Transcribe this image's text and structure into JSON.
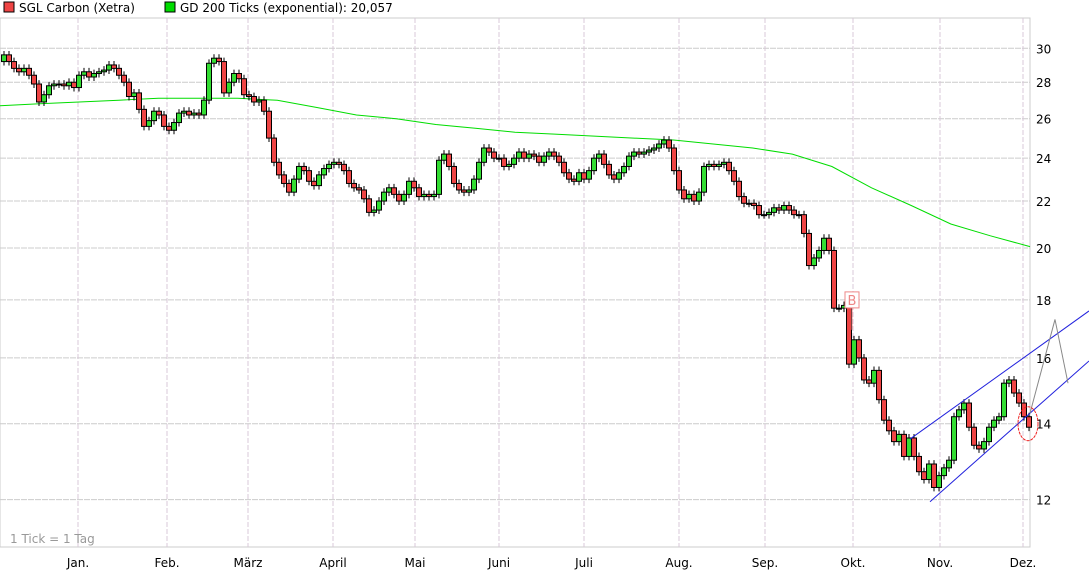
{
  "chart_data": {
    "type": "candlestick",
    "title": "",
    "legend": [
      {
        "name": "SGL Carbon (Xetra)",
        "color": "#ee4444"
      },
      {
        "name": "GD 200 Ticks (exponential): 20,057",
        "color": "#00dd00"
      }
    ],
    "legend_placement": "top-left",
    "note": "1 Tick = 1 Tag",
    "y_scale": "log",
    "y_axis_side": "right",
    "ylim": [
      10.9,
      31.9
    ],
    "y_ticks": [
      "12",
      "14",
      "16",
      "18",
      "20",
      "22",
      "24",
      "26",
      "28",
      "30"
    ],
    "x_ticks": [
      "Jan.",
      "Feb.",
      "März",
      "April",
      "Mai",
      "Juni",
      "Juli",
      "Aug.",
      "Sep.",
      "Okt.",
      "Nov.",
      "Dez."
    ],
    "grid": true,
    "colors": {
      "up": "#33dd33",
      "down": "#ee4444",
      "ma": "#00dd00",
      "channel": "#2222dd",
      "projection": "#888888",
      "marker": "#ee8888"
    },
    "first_open": 29.2,
    "closes": [
      29.6,
      29.2,
      28.8,
      28.6,
      28.8,
      28.4,
      27.9,
      26.9,
      27.3,
      27.8,
      27.9,
      27.9,
      27.8,
      28.0,
      27.7,
      28.4,
      28.6,
      28.3,
      28.5,
      28.6,
      28.7,
      29.0,
      28.8,
      28.4,
      28.0,
      27.2,
      27.4,
      26.5,
      25.6,
      25.9,
      26.4,
      26.2,
      25.6,
      25.4,
      25.8,
      26.3,
      26.4,
      26.2,
      26.3,
      26.2,
      27.0,
      29.1,
      29.4,
      29.2,
      27.4,
      28.0,
      28.5,
      28.2,
      27.3,
      27.2,
      26.9,
      27.0,
      26.4,
      25.0,
      23.8,
      23.2,
      22.8,
      22.4,
      23.0,
      23.6,
      23.4,
      22.9,
      22.7,
      23.2,
      23.5,
      23.7,
      23.8,
      23.7,
      23.4,
      22.8,
      22.6,
      22.5,
      22.1,
      21.5,
      21.6,
      22.0,
      22.4,
      22.6,
      22.3,
      22.0,
      22.3,
      22.9,
      22.6,
      22.2,
      22.3,
      22.2,
      22.3,
      23.9,
      24.2,
      23.6,
      22.8,
      22.5,
      22.4,
      22.5,
      23.0,
      23.8,
      24.5,
      24.3,
      24.0,
      24.0,
      23.6,
      23.7,
      24.0,
      24.3,
      24.0,
      24.2,
      24.1,
      23.8,
      24.1,
      24.3,
      24.1,
      23.8,
      23.3,
      23.0,
      22.9,
      23.3,
      23.0,
      23.4,
      24.0,
      24.2,
      23.7,
      23.2,
      23.0,
      23.3,
      23.6,
      24.1,
      24.3,
      24.2,
      24.3,
      24.4,
      24.5,
      24.7,
      24.9,
      24.5,
      23.4,
      22.5,
      22.1,
      22.3,
      22.0,
      22.4,
      23.6,
      23.7,
      23.6,
      23.7,
      23.8,
      23.4,
      22.9,
      22.2,
      21.9,
      21.9,
      21.8,
      21.4,
      21.4,
      21.5,
      21.7,
      21.6,
      21.8,
      21.6,
      21.4,
      21.4,
      20.6,
      19.3,
      19.6,
      19.9,
      20.4,
      19.9,
      17.7,
      17.7,
      17.8,
      15.8,
      16.6,
      16.0,
      15.3,
      15.2,
      15.6,
      14.7,
      14.1,
      13.8,
      13.5,
      13.7,
      13.1,
      13.6,
      13.1,
      12.7,
      12.5,
      12.9,
      12.3,
      12.6,
      12.8,
      13.0,
      14.2,
      14.4,
      14.6,
      13.9,
      13.4,
      13.3,
      13.5,
      13.9,
      14.1,
      14.2,
      15.2,
      15.3,
      14.9,
      14.6,
      14.2,
      13.9
    ],
    "ma200": [
      26.7,
      26.8,
      26.9,
      27.0,
      27.1,
      27.1,
      27.1,
      27.0,
      26.6,
      26.2,
      26.0,
      25.7,
      25.5,
      25.3,
      25.2,
      25.1,
      25.0,
      24.9,
      24.7,
      24.5,
      24.2,
      23.6,
      22.6,
      21.8,
      21.0,
      20.5,
      20.057
    ],
    "annotations": {
      "channel_upper": [
        [
          181.2,
          13.57
        ],
        [
          217.0,
          17.6
        ]
      ],
      "channel_lower": [
        [
          185.2,
          11.95
        ],
        [
          217.0,
          15.9
        ]
      ],
      "projection": [
        [
          205.2,
          14.3
        ],
        [
          210.2,
          17.3
        ],
        [
          212.8,
          15.2
        ]
      ],
      "circle": {
        "index": 204.8,
        "price": 14.0
      },
      "buy_marker": {
        "label": "B",
        "index": 169.6,
        "price": 18.0
      }
    }
  }
}
